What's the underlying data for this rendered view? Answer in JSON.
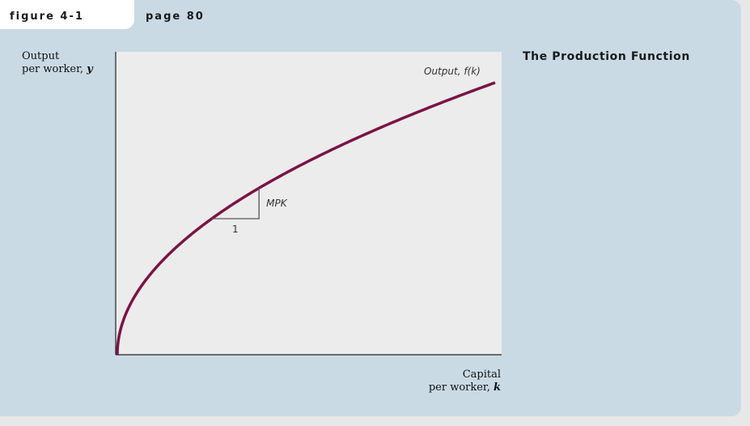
{
  "header": {
    "figure_tag": "figure 4-1",
    "page_label": "page 80",
    "title": "The Production Function"
  },
  "chart_data": {
    "type": "line",
    "title": "The Production Function",
    "ylabel": {
      "text": "Output",
      "text_line2": "per worker, ",
      "var": "y"
    },
    "xlabel": {
      "text": "Capital",
      "text_line2": "per worker, ",
      "var": "k"
    },
    "xlim": [
      0,
      1
    ],
    "ylim": [
      0,
      1
    ],
    "series": [
      {
        "name": "Output, f(k)",
        "function": "sqrt",
        "color": "#7a1446",
        "x": [
          0,
          0.01,
          0.05,
          0.1,
          0.2,
          0.3,
          0.4,
          0.5,
          0.6,
          0.7,
          0.8,
          0.9,
          1.0
        ],
        "y": [
          0,
          0.1,
          0.224,
          0.316,
          0.447,
          0.548,
          0.632,
          0.707,
          0.775,
          0.837,
          0.894,
          0.949,
          1.0
        ]
      }
    ],
    "annotations": {
      "curve_label": "Output, f(k)",
      "slope_label": "MPK",
      "run_label": "1",
      "slope_triangle_x": [
        0.25,
        0.375
      ]
    }
  }
}
